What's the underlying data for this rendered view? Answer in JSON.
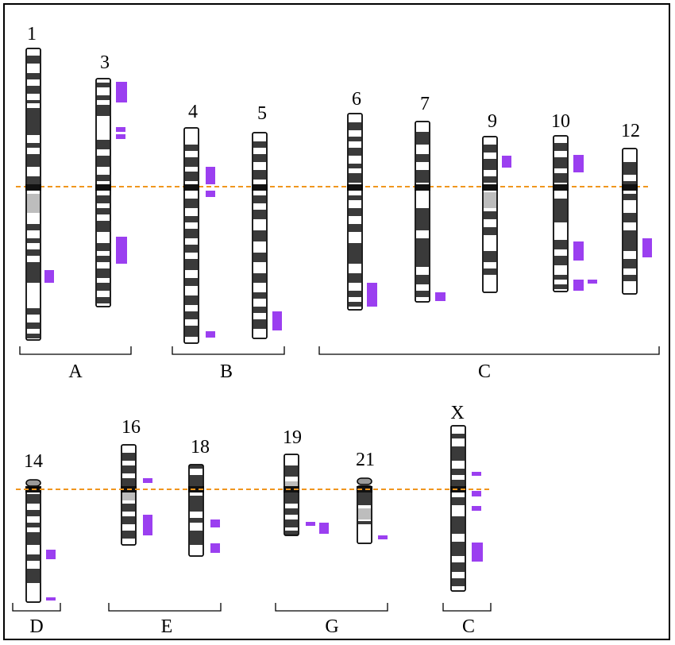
{
  "colors": {
    "dark_band": "#3a3a3a",
    "light_band": "#ffffff",
    "centromere_band": "#bdbdbd",
    "marker": "#9b3ff0",
    "guide_line": "#f0961e",
    "outline": "#000000"
  },
  "chromosomes": [
    {
      "label": "1"
    },
    {
      "label": "3"
    },
    {
      "label": "4"
    },
    {
      "label": "5"
    },
    {
      "label": "6"
    },
    {
      "label": "7"
    },
    {
      "label": "9"
    },
    {
      "label": "10"
    },
    {
      "label": "12"
    },
    {
      "label": "14"
    },
    {
      "label": "16"
    },
    {
      "label": "18"
    },
    {
      "label": "19"
    },
    {
      "label": "21"
    },
    {
      "label": "X"
    }
  ],
  "groups": [
    {
      "label": "A"
    },
    {
      "label": "B"
    },
    {
      "label": "C"
    },
    {
      "label": "D"
    },
    {
      "label": "E"
    },
    {
      "label": "G"
    },
    {
      "label": "C"
    }
  ]
}
